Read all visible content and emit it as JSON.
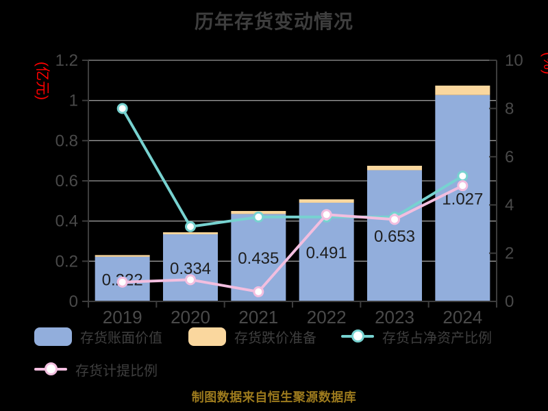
{
  "title": "历年存货变动情况",
  "footer": "制图数据来自恒生聚源数据库",
  "colors": {
    "background": "#000000",
    "title_text": "#3e3e3e",
    "tick_text": "#4a4a4a",
    "value_label_text": "#1e1e1e",
    "legend_text": "#3f3f3f",
    "axis_line": "#3d3d3d",
    "grid_line": "#999999",
    "axis_unit_red": "#ff0000",
    "footer_gold": "#9c7a1d",
    "bar_blue": "#92aedc",
    "bar_orange": "#fad79e",
    "line_teal": "#77d2d0",
    "line_pink": "#f2bedf",
    "marker_fill": "#ffffff"
  },
  "chart_data": {
    "type": "bar",
    "subtype": "stacked bars + two lines (dual axis combo)",
    "title": "历年存货变动情况",
    "categories": [
      "2019",
      "2020",
      "2021",
      "2022",
      "2023",
      "2024"
    ],
    "series": [
      {
        "name": "存货账面价值",
        "type": "bar",
        "axis": "left",
        "color": "#92aedc",
        "values": [
          0.222,
          0.334,
          0.435,
          0.491,
          0.653,
          1.027
        ],
        "data_labels": [
          "0.222",
          "0.334",
          "0.435",
          "0.491",
          "0.653",
          "1.027"
        ]
      },
      {
        "name": "存货跌价准备",
        "type": "bar",
        "axis": "left",
        "stacked_on": "存货账面价值",
        "color": "#fad79e",
        "values": [
          0.008,
          0.01,
          0.015,
          0.017,
          0.022,
          0.047
        ],
        "note": "unlabeled small caps, values estimated from pixels"
      },
      {
        "name": "存货占净资产比例",
        "type": "line",
        "axis": "right",
        "color": "#77d2d0",
        "values": [
          8.0,
          3.1,
          3.5,
          3.5,
          3.5,
          5.2
        ],
        "note": "estimated from gridlines"
      },
      {
        "name": "存货计提比例",
        "type": "line",
        "axis": "right",
        "color": "#f2bedf",
        "values": [
          0.8,
          0.9,
          0.4,
          3.6,
          3.4,
          4.8
        ],
        "note": "estimated from gridlines"
      }
    ],
    "left_axis": {
      "name": "(亿元)",
      "min": 0,
      "max": 1.2,
      "ticks": [
        "0",
        "0.2",
        "0.4",
        "0.6",
        "0.8",
        "1",
        "1.2"
      ]
    },
    "right_axis": {
      "name": "(%)",
      "min": 0,
      "max": 10,
      "ticks": [
        "0",
        "2",
        "4",
        "6",
        "8",
        "10"
      ]
    },
    "grid": "horizontal gridlines on, gray, behind bars",
    "legend_position": "bottom-left, two rows"
  }
}
